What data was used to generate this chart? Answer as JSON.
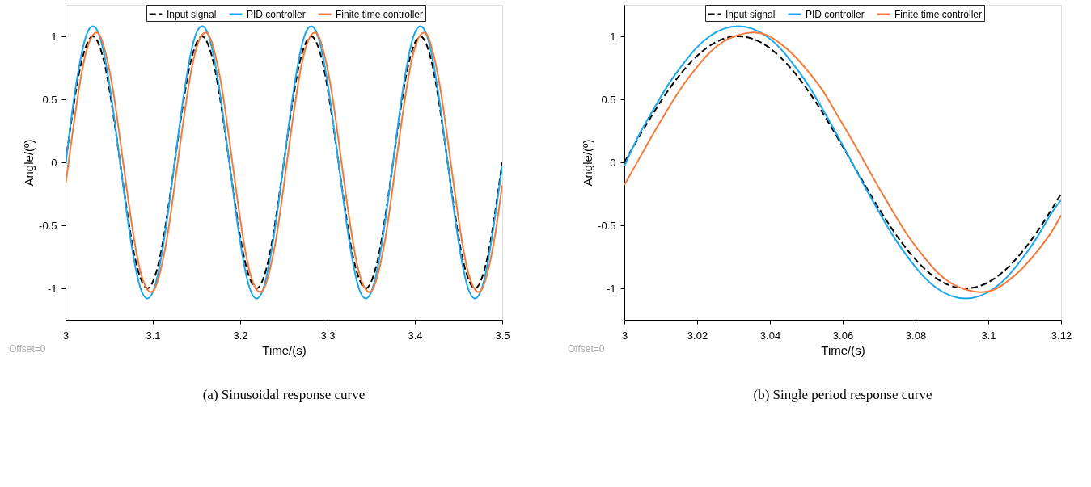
{
  "chart_data": [
    {
      "type": "line",
      "title": "(a) Sinusoidal response curve",
      "xlabel": "Time/(s)",
      "ylabel": "Angle/(º)",
      "annotations": [
        "Offset=0"
      ],
      "legend": "top",
      "grid": false,
      "x": [
        3,
        3.0078,
        3.0156,
        3.0234,
        3.0313,
        3.0391,
        3.0469,
        3.0547,
        3.0625,
        3.0703,
        3.0781,
        3.0859,
        3.0938,
        3.1016,
        3.1094,
        3.1172,
        3.125,
        3.1328,
        3.1406,
        3.1484,
        3.1563,
        3.1641,
        3.1719,
        3.1797,
        3.1875,
        3.1953,
        3.2031,
        3.2109,
        3.2188,
        3.2266,
        3.2344,
        3.2422,
        3.25,
        3.2578,
        3.2656,
        3.2734,
        3.2813,
        3.2891,
        3.2969,
        3.3047,
        3.3125,
        3.3203,
        3.3281,
        3.3359,
        3.3438,
        3.3516,
        3.3594,
        3.3672,
        3.375,
        3.3828,
        3.3906,
        3.3984,
        3.4063,
        3.4141,
        3.4219,
        3.4297,
        3.4375,
        3.4453,
        3.4531,
        3.4609,
        3.4688,
        3.4766,
        3.4844,
        3.4922,
        3.5
      ],
      "xlim": [
        3,
        3.5
      ],
      "xticks": [
        3,
        3.1,
        3.2,
        3.3,
        3.4,
        3.5
      ],
      "ylim": [
        -1.25,
        1.25
      ],
      "yticks": [
        -1,
        -0.5,
        0,
        0.5,
        1
      ],
      "series": [
        {
          "name": "Input signal",
          "color": "#000000",
          "line_style": "dashed",
          "values": [
            0,
            0.38,
            0.71,
            0.92,
            1,
            0.92,
            0.71,
            0.38,
            0,
            -0.38,
            -0.71,
            -0.92,
            -1,
            -0.92,
            -0.71,
            -0.38,
            0,
            0.38,
            0.71,
            0.92,
            1,
            0.92,
            0.71,
            0.38,
            0,
            -0.38,
            -0.71,
            -0.92,
            -1,
            -0.92,
            -0.71,
            -0.38,
            0,
            0.38,
            0.71,
            0.92,
            1,
            0.92,
            0.71,
            0.38,
            0,
            -0.38,
            -0.71,
            -0.92,
            -1,
            -0.92,
            -0.71,
            -0.38,
            0,
            0.38,
            0.71,
            0.92,
            1,
            0.92,
            0.71,
            0.38,
            0,
            -0.38,
            -0.71,
            -0.92,
            -1,
            -0.92,
            -0.71,
            -0.38,
            0
          ]
        },
        {
          "name": "PID controller",
          "color": "#1aa7ec",
          "line_style": "solid",
          "values": [
            -0.03,
            0.41,
            0.76,
            1.0,
            1.08,
            1.0,
            0.76,
            0.41,
            0,
            -0.41,
            -0.76,
            -1.0,
            -1.08,
            -1.0,
            -0.76,
            -0.41,
            0,
            0.41,
            0.76,
            1.0,
            1.08,
            1.0,
            0.76,
            0.41,
            0,
            -0.41,
            -0.76,
            -1.0,
            -1.08,
            -1.0,
            -0.76,
            -0.41,
            0,
            0.41,
            0.76,
            1.0,
            1.08,
            1.0,
            0.76,
            0.41,
            0,
            -0.41,
            -0.76,
            -1.0,
            -1.08,
            -1.0,
            -0.76,
            -0.41,
            0,
            0.41,
            0.76,
            1.0,
            1.08,
            1.0,
            0.76,
            0.41,
            0,
            -0.41,
            -0.76,
            -1.0,
            -1.08,
            -1.0,
            -0.76,
            -0.41,
            -0.03
          ]
        },
        {
          "name": "Finite time controller",
          "color": "#f47a3c",
          "line_style": "solid",
          "values": [
            -0.18,
            0.22,
            0.59,
            0.87,
            1.01,
            1.01,
            0.84,
            0.56,
            0.18,
            -0.22,
            -0.59,
            -0.87,
            -1.01,
            -1.01,
            -0.84,
            -0.56,
            -0.18,
            0.22,
            0.59,
            0.87,
            1.01,
            1.01,
            0.84,
            0.56,
            0.18,
            -0.22,
            -0.59,
            -0.87,
            -1.01,
            -1.01,
            -0.84,
            -0.56,
            -0.18,
            0.22,
            0.59,
            0.87,
            1.01,
            1.01,
            0.84,
            0.56,
            0.18,
            -0.22,
            -0.59,
            -0.87,
            -1.01,
            -1.01,
            -0.84,
            -0.56,
            -0.18,
            0.22,
            0.59,
            0.87,
            1.01,
            1.01,
            0.84,
            0.56,
            0.18,
            -0.22,
            -0.59,
            -0.87,
            -1.01,
            -1.01,
            -0.84,
            -0.56,
            -0.18
          ]
        }
      ]
    },
    {
      "type": "line",
      "title": "(b) Single period response curve",
      "xlabel": "Time/(s)",
      "ylabel": "Angle/(º)",
      "annotations": [
        "Offset=0"
      ],
      "legend": "top",
      "grid": false,
      "x": [
        3,
        3.0039,
        3.0078,
        3.0117,
        3.0156,
        3.0195,
        3.0234,
        3.0273,
        3.0313,
        3.0352,
        3.0391,
        3.043,
        3.0469,
        3.0508,
        3.0547,
        3.0586,
        3.0625,
        3.0664,
        3.0703,
        3.0742,
        3.0781,
        3.082,
        3.0859,
        3.0898,
        3.0938,
        3.0977,
        3.1016,
        3.1055,
        3.1094,
        3.1133,
        3.1172,
        3.12
      ],
      "xlim": [
        3,
        3.12
      ],
      "xticks": [
        3,
        3.02,
        3.04,
        3.06,
        3.08,
        3.1,
        3.12
      ],
      "ylim": [
        -1.25,
        1.25
      ],
      "yticks": [
        -1,
        -0.5,
        0,
        0.5,
        1
      ],
      "series": [
        {
          "name": "Input signal",
          "color": "#000000",
          "line_style": "dashed",
          "values": [
            0,
            0.195,
            0.383,
            0.556,
            0.707,
            0.831,
            0.924,
            0.981,
            1,
            0.981,
            0.924,
            0.831,
            0.707,
            0.556,
            0.383,
            0.195,
            0,
            -0.195,
            -0.383,
            -0.556,
            -0.707,
            -0.831,
            -0.924,
            -0.981,
            -1,
            -0.981,
            -0.924,
            -0.831,
            -0.707,
            -0.556,
            -0.383,
            -0.25
          ]
        },
        {
          "name": "PID controller",
          "color": "#1aa7ec",
          "line_style": "solid",
          "values": [
            -0.03,
            0.21,
            0.41,
            0.6,
            0.76,
            0.9,
            1.0,
            1.06,
            1.08,
            1.06,
            1.0,
            0.9,
            0.76,
            0.6,
            0.41,
            0.21,
            0,
            -0.21,
            -0.41,
            -0.6,
            -0.76,
            -0.9,
            -1.0,
            -1.06,
            -1.08,
            -1.06,
            -1.0,
            -0.9,
            -0.76,
            -0.6,
            -0.41,
            -0.3
          ]
        },
        {
          "name": "Finite time controller",
          "color": "#f47a3c",
          "line_style": "solid",
          "values": [
            -0.18,
            0.02,
            0.22,
            0.41,
            0.59,
            0.74,
            0.87,
            0.96,
            1.01,
            1.03,
            1.01,
            0.94,
            0.84,
            0.71,
            0.56,
            0.37,
            0.18,
            -0.02,
            -0.22,
            -0.41,
            -0.59,
            -0.74,
            -0.87,
            -0.96,
            -1.01,
            -1.03,
            -1.01,
            -0.94,
            -0.84,
            -0.71,
            -0.56,
            -0.42
          ]
        }
      ]
    }
  ]
}
